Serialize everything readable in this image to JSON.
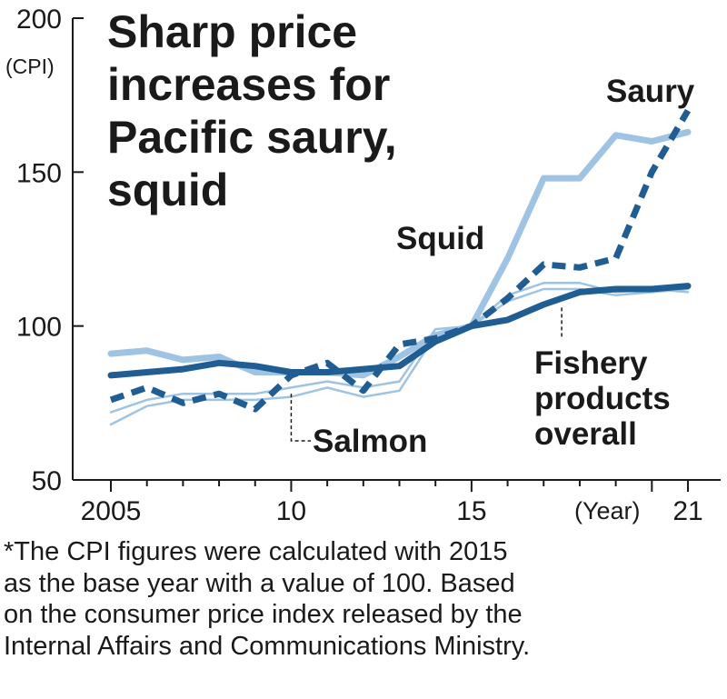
{
  "title_lines": [
    "Sharp price",
    "increases for",
    "Pacific saury,",
    "squid"
  ],
  "footnote_lines": [
    "*The CPI figures were calculated with 2015",
    "as the base year with a value of 100. Based",
    "on the consumer price index released by the",
    "Internal Affairs and Communications Ministry."
  ],
  "chart_data": {
    "type": "line",
    "ylabel": "(CPI)",
    "xlabel": "(Year)",
    "xlim": [
      2005,
      2021
    ],
    "ylim": [
      50,
      200
    ],
    "yticks": [
      {
        "value": 200,
        "label": "200"
      },
      {
        "value": 150,
        "label": "150"
      },
      {
        "value": 100,
        "label": "100"
      },
      {
        "value": 50,
        "label": "50"
      }
    ],
    "xticks": [
      {
        "value": 2005,
        "label": "2005"
      },
      {
        "value": 2010,
        "label": "10"
      },
      {
        "value": 2015,
        "label": "15"
      },
      {
        "value": 2021,
        "label": "21"
      }
    ],
    "grid": false,
    "series": [
      {
        "name": "Squid",
        "style": "solid",
        "color": "#9fc3e3",
        "x": [
          2005,
          2006,
          2007,
          2008,
          2009,
          2010,
          2011,
          2012,
          2013,
          2014,
          2015,
          2016,
          2017,
          2018,
          2019,
          2020,
          2021
        ],
        "y": [
          91,
          92,
          89,
          90,
          85,
          85,
          85,
          84,
          90,
          97,
          100,
          122,
          148,
          148,
          162,
          160,
          163
        ]
      },
      {
        "name": "",
        "style": "thin",
        "color": "#9fc3e3",
        "x": [
          2005,
          2006,
          2007,
          2008,
          2009,
          2010,
          2011,
          2012,
          2013,
          2014,
          2015,
          2016,
          2017,
          2018,
          2019,
          2020,
          2021
        ],
        "y": [
          72,
          76,
          78,
          78,
          78,
          80,
          82,
          80,
          82,
          99,
          100,
          108,
          112,
          112,
          110,
          111,
          112
        ]
      },
      {
        "name": "Salmon",
        "style": "thin",
        "color": "#9fc3e3",
        "x": [
          2005,
          2006,
          2007,
          2008,
          2009,
          2010,
          2011,
          2012,
          2013,
          2014,
          2015,
          2016,
          2017,
          2018,
          2019,
          2020,
          2021
        ],
        "y": [
          68,
          74,
          76,
          76,
          76,
          77,
          80,
          77,
          79,
          97,
          100,
          110,
          114,
          114,
          111,
          112,
          111
        ]
      },
      {
        "name": "Saury",
        "style": "dashed",
        "color": "#1f5d93",
        "x": [
          2005,
          2006,
          2007,
          2008,
          2009,
          2010,
          2011,
          2012,
          2013,
          2014,
          2015,
          2016,
          2017,
          2018,
          2019,
          2020,
          2021
        ],
        "y": [
          76,
          80,
          75,
          78,
          73,
          84,
          88,
          79,
          94,
          96,
          100,
          109,
          120,
          119,
          122,
          150,
          170
        ]
      },
      {
        "name": "Fishery products overall",
        "style": "bold",
        "color": "#1f5d93",
        "x": [
          2005,
          2006,
          2007,
          2008,
          2009,
          2010,
          2011,
          2012,
          2013,
          2014,
          2015,
          2016,
          2017,
          2018,
          2019,
          2020,
          2021
        ],
        "y": [
          84,
          85,
          86,
          88,
          87,
          85,
          85,
          86,
          87,
          95,
          100,
          102,
          107,
          111,
          112,
          112,
          113
        ]
      }
    ],
    "labels": {
      "saury": "Saury",
      "squid": "Squid",
      "salmon": "Salmon",
      "fishery_lines": [
        "Fishery",
        "products",
        "overall"
      ]
    }
  }
}
